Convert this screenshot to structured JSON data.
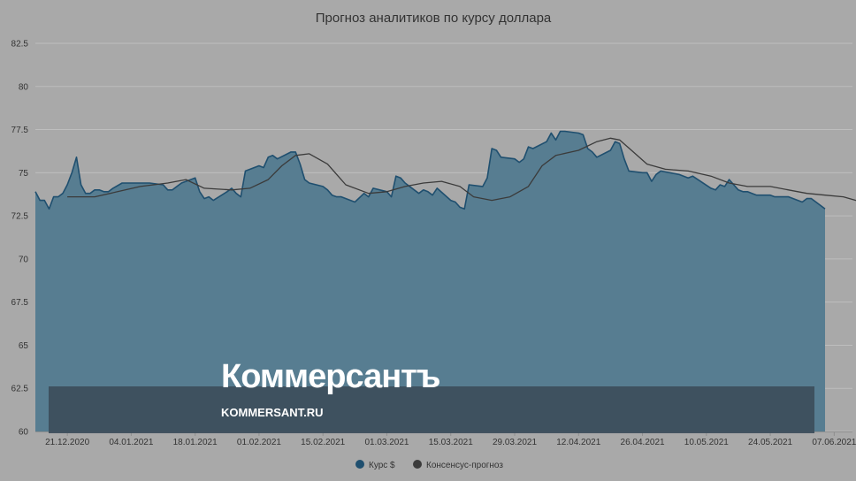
{
  "chart_data": {
    "type": "area",
    "title": "Прогноз аналитиков по курсу доллара",
    "xlabel": "",
    "ylabel": "",
    "ylim": [
      60,
      82.5
    ],
    "y_ticks": [
      "60",
      "62.5",
      "65",
      "67.5",
      "70",
      "72.5",
      "75",
      "77.5",
      "80",
      "82.5"
    ],
    "x_ticks": [
      "21.12.2020",
      "04.01.2021",
      "18.01.2021",
      "01.02.2021",
      "15.02.2021",
      "01.03.2021",
      "15.03.2021",
      "29.03.2021",
      "12.04.2021",
      "26.04.2021",
      "10.05.2021",
      "24.05.2021",
      "07.06.2021"
    ],
    "x_start": "2020-12-14",
    "x_end": "2021-06-11",
    "grid": true,
    "legend_position": "bottom-center",
    "series": [
      {
        "name": "Курс $",
        "kind": "area",
        "color": "#1f4f6f",
        "fill": "#577d91",
        "points": [
          [
            "2020-12-14",
            73.9
          ],
          [
            "2020-12-15",
            73.4
          ],
          [
            "2020-12-16",
            73.4
          ],
          [
            "2020-12-17",
            72.9
          ],
          [
            "2020-12-18",
            73.6
          ],
          [
            "2020-12-19",
            73.6
          ],
          [
            "2020-12-20",
            73.8
          ],
          [
            "2020-12-21",
            74.3
          ],
          [
            "2020-12-22",
            75.0
          ],
          [
            "2020-12-23",
            75.9
          ],
          [
            "2020-12-24",
            74.3
          ],
          [
            "2020-12-25",
            73.8
          ],
          [
            "2020-12-26",
            73.8
          ],
          [
            "2020-12-27",
            74.0
          ],
          [
            "2020-12-28",
            74.0
          ],
          [
            "2020-12-29",
            73.9
          ],
          [
            "2020-12-30",
            73.9
          ],
          [
            "2020-12-31",
            74.1
          ],
          [
            "2021-01-02",
            74.4
          ],
          [
            "2021-01-06",
            74.4
          ],
          [
            "2021-01-08",
            74.4
          ],
          [
            "2021-01-11",
            74.3
          ],
          [
            "2021-01-12",
            74.0
          ],
          [
            "2021-01-13",
            74.0
          ],
          [
            "2021-01-14",
            74.2
          ],
          [
            "2021-01-15",
            74.4
          ],
          [
            "2021-01-18",
            74.7
          ],
          [
            "2021-01-19",
            73.9
          ],
          [
            "2021-01-20",
            73.5
          ],
          [
            "2021-01-21",
            73.6
          ],
          [
            "2021-01-22",
            73.4
          ],
          [
            "2021-01-25",
            73.9
          ],
          [
            "2021-01-26",
            74.1
          ],
          [
            "2021-01-27",
            73.8
          ],
          [
            "2021-01-28",
            73.6
          ],
          [
            "2021-01-29",
            75.1
          ],
          [
            "2021-02-01",
            75.4
          ],
          [
            "2021-02-02",
            75.3
          ],
          [
            "2021-02-03",
            75.9
          ],
          [
            "2021-02-04",
            76.0
          ],
          [
            "2021-02-05",
            75.8
          ],
          [
            "2021-02-08",
            76.2
          ],
          [
            "2021-02-09",
            76.2
          ],
          [
            "2021-02-10",
            75.5
          ],
          [
            "2021-02-11",
            74.6
          ],
          [
            "2021-02-12",
            74.4
          ],
          [
            "2021-02-15",
            74.2
          ],
          [
            "2021-02-16",
            74.0
          ],
          [
            "2021-02-17",
            73.7
          ],
          [
            "2021-02-18",
            73.6
          ],
          [
            "2021-02-19",
            73.6
          ],
          [
            "2021-02-22",
            73.3
          ],
          [
            "2021-02-24",
            73.8
          ],
          [
            "2021-02-25",
            73.6
          ],
          [
            "2021-02-26",
            74.1
          ],
          [
            "2021-03-01",
            73.9
          ],
          [
            "2021-03-02",
            73.6
          ],
          [
            "2021-03-03",
            74.8
          ],
          [
            "2021-03-04",
            74.7
          ],
          [
            "2021-03-05",
            74.4
          ],
          [
            "2021-03-08",
            73.8
          ],
          [
            "2021-03-09",
            74.0
          ],
          [
            "2021-03-10",
            73.9
          ],
          [
            "2021-03-11",
            73.7
          ],
          [
            "2021-03-12",
            74.1
          ],
          [
            "2021-03-15",
            73.4
          ],
          [
            "2021-03-16",
            73.3
          ],
          [
            "2021-03-17",
            73.0
          ],
          [
            "2021-03-18",
            72.9
          ],
          [
            "2021-03-19",
            74.3
          ],
          [
            "2021-03-22",
            74.2
          ],
          [
            "2021-03-23",
            74.7
          ],
          [
            "2021-03-24",
            76.4
          ],
          [
            "2021-03-25",
            76.3
          ],
          [
            "2021-03-26",
            75.9
          ],
          [
            "2021-03-29",
            75.8
          ],
          [
            "2021-03-30",
            75.6
          ],
          [
            "2021-03-31",
            75.8
          ],
          [
            "2021-04-01",
            76.5
          ],
          [
            "2021-04-02",
            76.4
          ],
          [
            "2021-04-05",
            76.8
          ],
          [
            "2021-04-06",
            77.3
          ],
          [
            "2021-04-07",
            76.9
          ],
          [
            "2021-04-08",
            77.4
          ],
          [
            "2021-04-09",
            77.4
          ],
          [
            "2021-04-12",
            77.3
          ],
          [
            "2021-04-13",
            77.2
          ],
          [
            "2021-04-14",
            76.4
          ],
          [
            "2021-04-15",
            76.2
          ],
          [
            "2021-04-16",
            75.9
          ],
          [
            "2021-04-19",
            76.3
          ],
          [
            "2021-04-20",
            76.8
          ],
          [
            "2021-04-21",
            76.7
          ],
          [
            "2021-04-22",
            75.8
          ],
          [
            "2021-04-23",
            75.1
          ],
          [
            "2021-04-26",
            75.0
          ],
          [
            "2021-04-27",
            75.0
          ],
          [
            "2021-04-28",
            74.5
          ],
          [
            "2021-04-29",
            74.9
          ],
          [
            "2021-04-30",
            75.1
          ],
          [
            "2021-05-04",
            74.9
          ],
          [
            "2021-05-05",
            74.8
          ],
          [
            "2021-05-06",
            74.7
          ],
          [
            "2021-05-07",
            74.8
          ],
          [
            "2021-05-11",
            74.1
          ],
          [
            "2021-05-12",
            74.0
          ],
          [
            "2021-05-13",
            74.3
          ],
          [
            "2021-05-14",
            74.2
          ],
          [
            "2021-05-15",
            74.6
          ],
          [
            "2021-05-17",
            74.0
          ],
          [
            "2021-05-18",
            73.9
          ],
          [
            "2021-05-19",
            73.9
          ],
          [
            "2021-05-20",
            73.8
          ],
          [
            "2021-05-21",
            73.7
          ],
          [
            "2021-05-24",
            73.7
          ],
          [
            "2021-05-25",
            73.6
          ],
          [
            "2021-05-26",
            73.6
          ],
          [
            "2021-05-27",
            73.6
          ],
          [
            "2021-05-28",
            73.6
          ],
          [
            "2021-05-31",
            73.3
          ],
          [
            "2021-06-01",
            73.5
          ],
          [
            "2021-06-02",
            73.5
          ],
          [
            "2021-06-03",
            73.3
          ],
          [
            "2021-06-04",
            73.1
          ],
          [
            "2021-06-05",
            72.9
          ]
        ]
      },
      {
        "name": "Консенсус-прогноз",
        "kind": "line",
        "color": "#3b3b3b",
        "points": [
          [
            "2020-12-21",
            73.6
          ],
          [
            "2020-12-27",
            73.6
          ],
          [
            "2021-01-01",
            73.9
          ],
          [
            "2021-01-06",
            74.2
          ],
          [
            "2021-01-12",
            74.4
          ],
          [
            "2021-01-16",
            74.6
          ],
          [
            "2021-01-20",
            74.1
          ],
          [
            "2021-01-26",
            74.0
          ],
          [
            "2021-01-30",
            74.1
          ],
          [
            "2021-02-03",
            74.6
          ],
          [
            "2021-02-06",
            75.4
          ],
          [
            "2021-02-09",
            76.0
          ],
          [
            "2021-02-12",
            76.1
          ],
          [
            "2021-02-16",
            75.5
          ],
          [
            "2021-02-20",
            74.3
          ],
          [
            "2021-02-25",
            73.8
          ],
          [
            "2021-03-01",
            73.9
          ],
          [
            "2021-03-05",
            74.2
          ],
          [
            "2021-03-09",
            74.4
          ],
          [
            "2021-03-13",
            74.5
          ],
          [
            "2021-03-17",
            74.2
          ],
          [
            "2021-03-20",
            73.6
          ],
          [
            "2021-03-24",
            73.4
          ],
          [
            "2021-03-28",
            73.6
          ],
          [
            "2021-04-01",
            74.2
          ],
          [
            "2021-04-04",
            75.4
          ],
          [
            "2021-04-07",
            76.0
          ],
          [
            "2021-04-12",
            76.3
          ],
          [
            "2021-04-16",
            76.8
          ],
          [
            "2021-04-19",
            77.0
          ],
          [
            "2021-04-21",
            76.9
          ],
          [
            "2021-04-24",
            76.2
          ],
          [
            "2021-04-27",
            75.5
          ],
          [
            "2021-05-01",
            75.2
          ],
          [
            "2021-05-06",
            75.1
          ],
          [
            "2021-05-11",
            74.8
          ],
          [
            "2021-05-15",
            74.4
          ],
          [
            "2021-05-19",
            74.2
          ],
          [
            "2021-05-24",
            74.2
          ],
          [
            "2021-05-28",
            74.0
          ],
          [
            "2021-06-01",
            73.8
          ],
          [
            "2021-06-05",
            73.7
          ],
          [
            "2021-06-09",
            73.6
          ],
          [
            "2021-06-13",
            73.3
          ],
          [
            "2021-06-16",
            73.1
          ]
        ]
      }
    ]
  },
  "watermark": {
    "brand": "Коммерсантъ",
    "url": "KOMMERSANT.RU"
  },
  "colors": {
    "background": "#a9a9a9",
    "grid": "#bebebe",
    "banner": "#3c4e5b"
  }
}
